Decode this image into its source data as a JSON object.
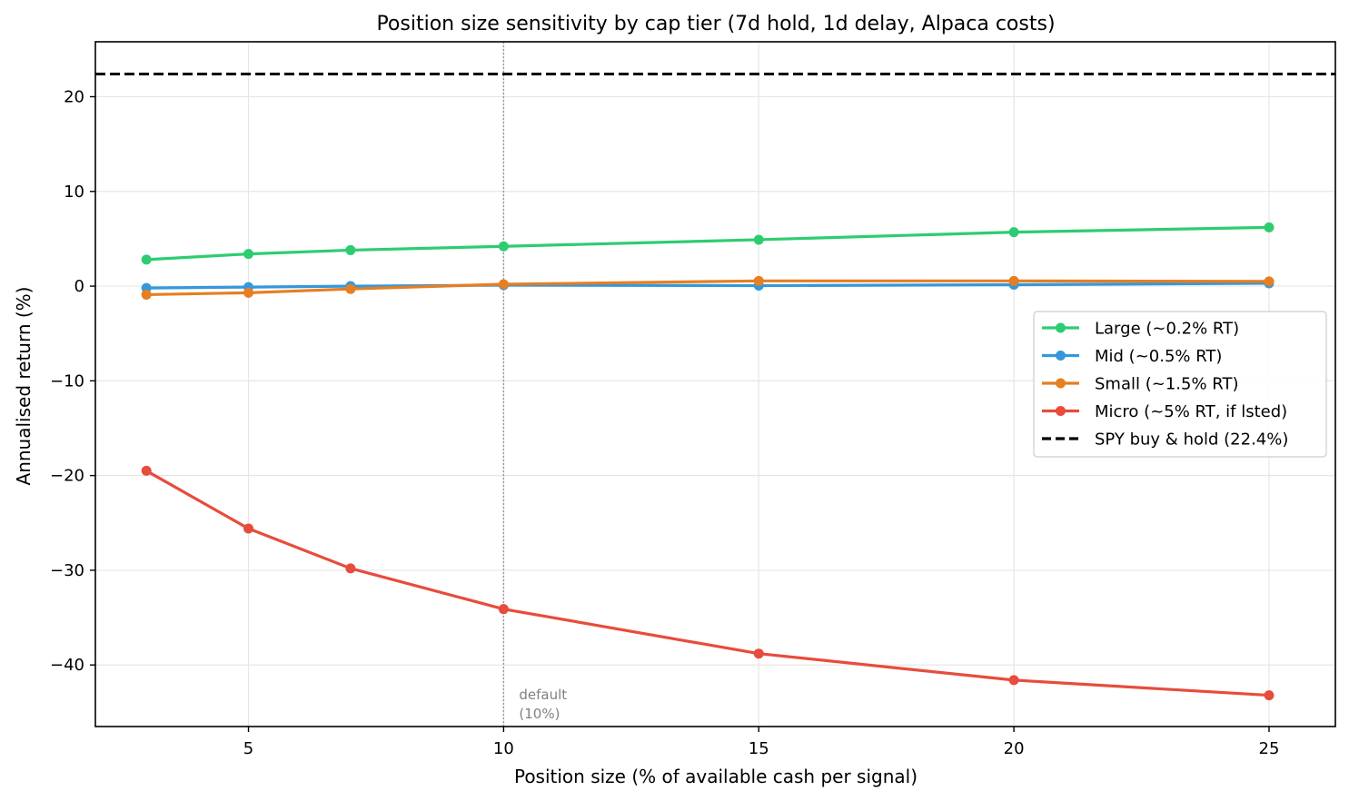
{
  "chart_data": {
    "type": "line",
    "title": "Position size sensitivity by cap tier  (7d hold, 1d delay, Alpaca costs)",
    "xlabel": "Position size (% of available cash per signal)",
    "ylabel": "Annualised return (%)",
    "xlim": [
      2,
      26.3
    ],
    "ylim": [
      -46.5,
      25.8
    ],
    "xticks": [
      5,
      10,
      15,
      20,
      25
    ],
    "yticks": [
      -40,
      -30,
      -20,
      -10,
      0,
      10,
      20
    ],
    "grid": true,
    "legend_position": "center-right",
    "x": [
      3,
      5,
      7,
      10,
      15,
      20,
      25
    ],
    "series": [
      {
        "name": "Large (~0.2% RT)",
        "color": "#2ecc71",
        "values": [
          2.8,
          3.4,
          3.8,
          4.2,
          4.9,
          5.7,
          6.2
        ]
      },
      {
        "name": "Mid (~0.5% RT)",
        "color": "#3498db",
        "values": [
          -0.2,
          -0.1,
          0.0,
          0.1,
          0.05,
          0.15,
          0.3
        ]
      },
      {
        "name": "Small (~1.5% RT)",
        "color": "#e67e22",
        "values": [
          -0.9,
          -0.7,
          -0.3,
          0.2,
          0.55,
          0.55,
          0.5
        ]
      },
      {
        "name": "Micro (~5% RT, if lsted)",
        "color": "#e74c3c",
        "values": [
          -19.5,
          -25.6,
          -29.8,
          -34.1,
          -38.8,
          -41.6,
          -43.2
        ]
      }
    ],
    "reference_line": {
      "name": "SPY buy & hold (22.4%)",
      "value": 22.4,
      "color": "#000000",
      "style": "dashed"
    },
    "annotation": {
      "x": 10,
      "lines": [
        "default",
        "(10%)"
      ]
    }
  }
}
